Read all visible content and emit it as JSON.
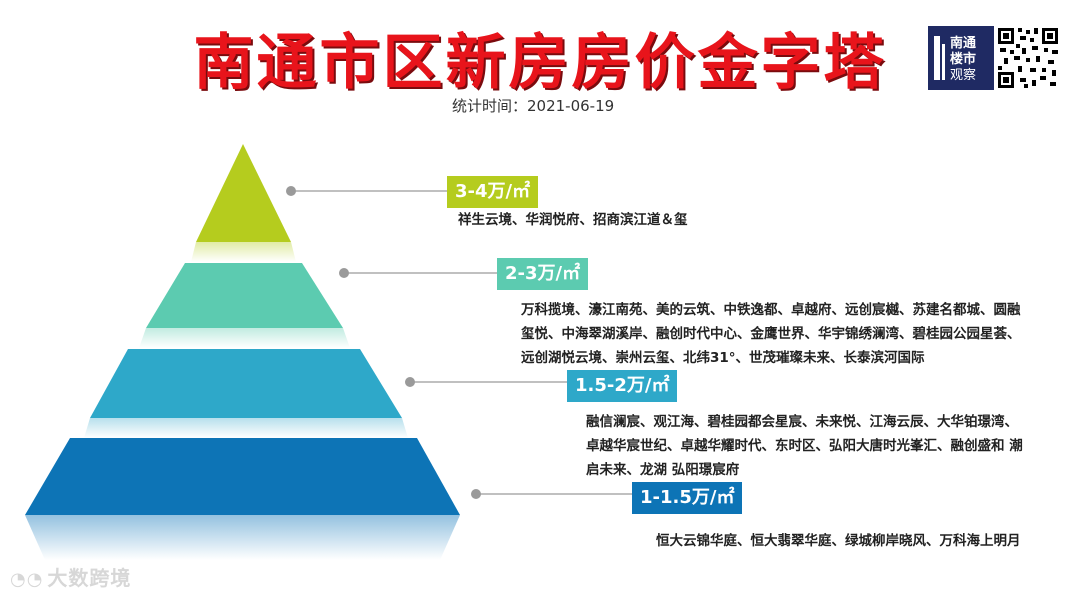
{
  "header": {
    "title": "南通市区新房房价金字塔",
    "date": "统计时间：2021-06-19"
  },
  "logo": {
    "line1": "南通",
    "line2": "楼市",
    "line3": "观察",
    "bg_color": "#1f2a63"
  },
  "qr": {
    "icon": "qr-code-icon"
  },
  "tiers": [
    {
      "price": "3-4万/㎡",
      "color": "#b5cc1e",
      "projects": "祥生云境、华润悦府、招商滨江道＆玺"
    },
    {
      "price": "2-3万/㎡",
      "color": "#5ccbb0",
      "projects": "万科揽境、濠江南苑、美的云筑、中铁逸都、卓越府、远创宸樾、苏建名都城、圆融玺悦、中海翠湖溪岸、融创时代中心、金鹰世界、华宇锦绣澜湾、碧桂园公园星荟、远创湖悦云境、崇州云玺、北纬31°、世茂璀璨未来、长泰滨河国际"
    },
    {
      "price": "1.5-2万/㎡",
      "color": "#2ea8c9",
      "projects": "融信澜宸、观江海、碧桂园都会星宸、未来悦、江海云辰、大华铂璟湾、卓越华宸世纪、卓越华耀时代、东时区、弘阳大唐时光峯汇、融创盛和 潮启未来、龙湖 弘阳璟宸府"
    },
    {
      "price": "1-1.5万/㎡",
      "color": "#0d74b6",
      "projects": "恒大云锦华庭、恒大翡翠华庭、绿城柳岸晓风、万科海上明月"
    }
  ],
  "watermark": {
    "icon": "eye-logo-icon",
    "text": "大数跨境"
  }
}
